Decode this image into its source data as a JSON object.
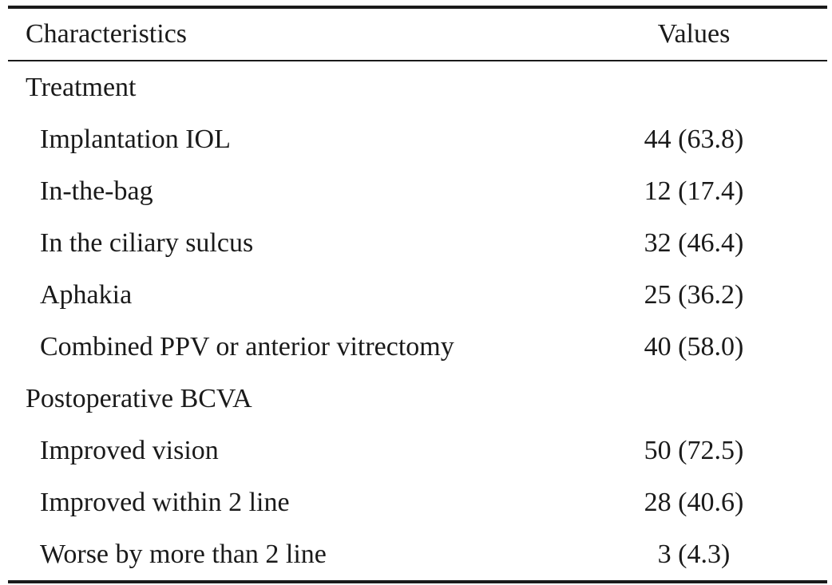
{
  "table": {
    "headers": {
      "characteristics": "Characteristics",
      "values": "Values"
    },
    "rows": [
      {
        "label": "Treatment",
        "value": "",
        "kind": "section"
      },
      {
        "label": "Implantation IOL",
        "value": "44 (63.8)",
        "kind": "sub"
      },
      {
        "label": "In-the-bag",
        "value": "12 (17.4)",
        "kind": "sub"
      },
      {
        "label": "In the ciliary sulcus",
        "value": "32 (46.4)",
        "kind": "sub"
      },
      {
        "label": "Aphakia",
        "value": "25 (36.2)",
        "kind": "sub"
      },
      {
        "label": "Combined PPV or anterior vitrectomy",
        "value": "40 (58.0)",
        "kind": "sub"
      },
      {
        "label": "Postoperative BCVA",
        "value": "",
        "kind": "section"
      },
      {
        "label": "Improved vision",
        "value": "50 (72.5)",
        "kind": "sub"
      },
      {
        "label": "Improved within 2 line",
        "value": "28 (40.6)",
        "kind": "sub"
      },
      {
        "label": "Worse by more than 2 line",
        "value": "3 (4.3)",
        "kind": "sub"
      }
    ]
  }
}
